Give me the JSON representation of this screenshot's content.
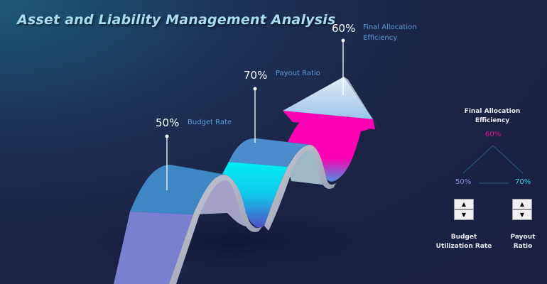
{
  "title": "Asset and Liability Management Analysis",
  "markers": [
    {
      "value": "50%",
      "label": "Budget Rate"
    },
    {
      "value": "70%",
      "label": "Payout Ratio"
    },
    {
      "value": "60%",
      "label": "Final Allocation Efficiency"
    }
  ],
  "panel": {
    "top_label": "Final Allocation Efficiency",
    "top_value": "60%",
    "left_value": "50%",
    "right_value": "70%",
    "left_label": "Budget Utilization Rate",
    "right_label": "Payout Ratio",
    "up_glyph": "▲",
    "down_glyph": "▼"
  },
  "colors": {
    "top_value": "#e0168f",
    "left_value": "#8a8fd8",
    "right_value": "#2fd7e6",
    "accent_magenta": "#ff00b4",
    "accent_cyan": "#00e8f0"
  }
}
